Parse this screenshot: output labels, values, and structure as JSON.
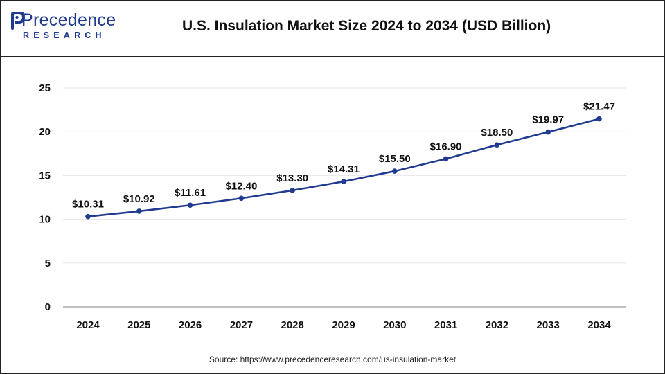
{
  "header": {
    "brand_name": "Precedence",
    "brand_sub": "RESEARCH",
    "title": "U.S. Insulation Market Size 2024 to 2034 (USD Billion)"
  },
  "footer": {
    "source": "Source: https://www.precedenceresearch.com/us-insulation-market"
  },
  "colors": {
    "line": "#1f3a8f",
    "brand": "#1f3a8f",
    "grid": "#e6e6e6"
  },
  "chart_data": {
    "type": "line",
    "title": "U.S. Insulation Market Size 2024 to 2034 (USD Billion)",
    "categories": [
      "2024",
      "2025",
      "2026",
      "2027",
      "2028",
      "2029",
      "2030",
      "2031",
      "2032",
      "2033",
      "2034"
    ],
    "values": [
      10.31,
      10.92,
      11.61,
      12.4,
      13.3,
      14.31,
      15.5,
      16.9,
      18.5,
      19.97,
      21.47
    ],
    "data_labels": [
      "$10.31",
      "$10.92",
      "$11.61",
      "$12.40",
      "$13.30",
      "$14.31",
      "$15.50",
      "$16.90",
      "$18.50",
      "$19.97",
      "$21.47"
    ],
    "yticks": [
      "0",
      "5",
      "10",
      "15",
      "20",
      "25"
    ],
    "ylim": [
      0,
      25
    ],
    "xlabel": "",
    "ylabel": "",
    "grid": true,
    "legend": false
  }
}
